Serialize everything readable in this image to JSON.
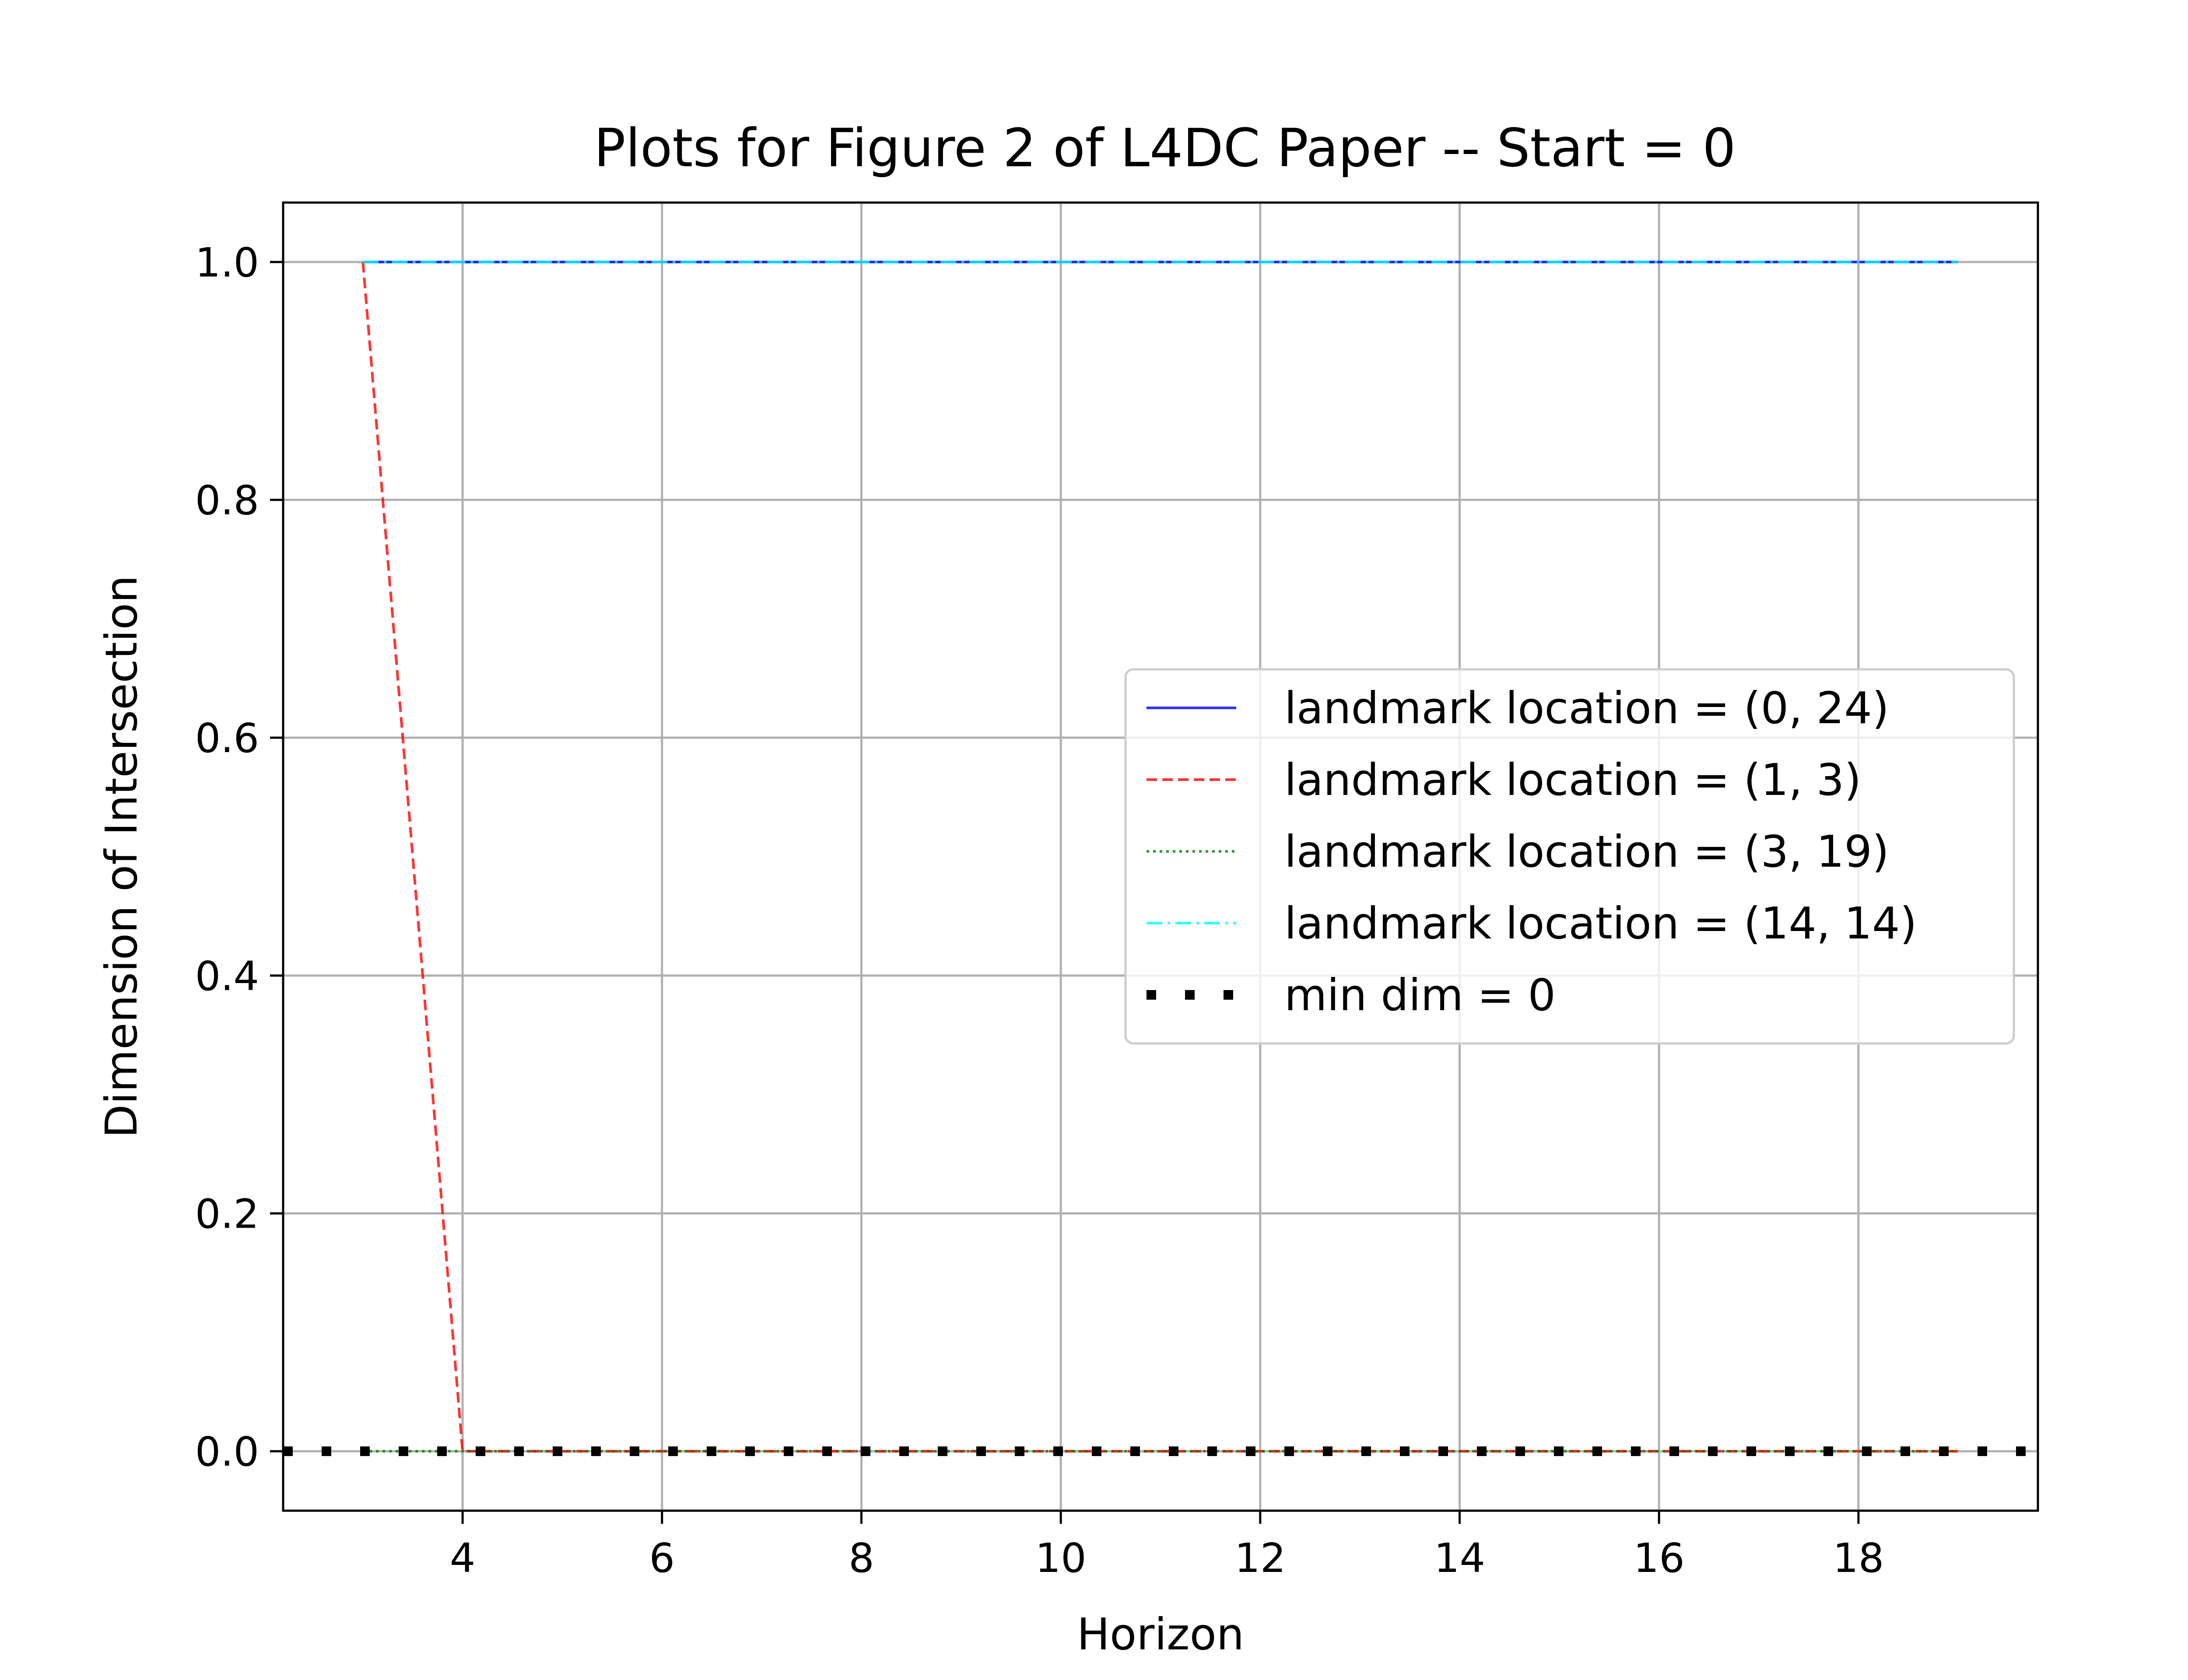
{
  "chart_data": {
    "type": "line",
    "title": "Plots for Figure 2 of L4DC Paper -- Start = 0",
    "xlabel": "Horizon",
    "ylabel": "Dimension of Intersection",
    "xlim": [
      2.2,
      19.8
    ],
    "ylim": [
      -0.05,
      1.05
    ],
    "xticks": [
      4,
      6,
      8,
      10,
      12,
      14,
      16,
      18
    ],
    "yticks": [
      0.0,
      0.2,
      0.4,
      0.6,
      0.8,
      1.0
    ],
    "ytick_labels": [
      "0.0",
      "0.2",
      "0.4",
      "0.6",
      "0.8",
      "1.0"
    ],
    "grid": true,
    "legend_location": "center-right",
    "series": [
      {
        "name": "landmark location = (0, 24)",
        "color": "#0000ff",
        "style": "solid",
        "x": [
          3,
          4,
          5,
          6,
          7,
          8,
          9,
          10,
          11,
          12,
          13,
          14,
          15,
          16,
          17,
          18,
          19
        ],
        "y": [
          1,
          1,
          1,
          1,
          1,
          1,
          1,
          1,
          1,
          1,
          1,
          1,
          1,
          1,
          1,
          1,
          1
        ]
      },
      {
        "name": "landmark location = (1, 3)",
        "color": "#ff0000",
        "style": "dashed",
        "x": [
          3,
          4,
          5,
          6,
          7,
          8,
          9,
          10,
          11,
          12,
          13,
          14,
          15,
          16,
          17,
          18,
          19
        ],
        "y": [
          1,
          0,
          0,
          0,
          0,
          0,
          0,
          0,
          0,
          0,
          0,
          0,
          0,
          0,
          0,
          0,
          0
        ]
      },
      {
        "name": "landmark location = (3, 19)",
        "color": "#008000",
        "style": "dotted",
        "x": [
          3,
          4,
          5,
          6,
          7,
          8,
          9,
          10,
          11,
          12,
          13,
          14,
          15,
          16,
          17,
          18,
          19
        ],
        "y": [
          0,
          0,
          0,
          0,
          0,
          0,
          0,
          0,
          0,
          0,
          0,
          0,
          0,
          0,
          0,
          0,
          0
        ]
      },
      {
        "name": "landmark location = (14, 14)",
        "color": "#00ffff",
        "style": "dashdot",
        "x": [
          3,
          4,
          5,
          6,
          7,
          8,
          9,
          10,
          11,
          12,
          13,
          14,
          15,
          16,
          17,
          18,
          19
        ],
        "y": [
          1,
          1,
          1,
          1,
          1,
          1,
          1,
          1,
          1,
          1,
          1,
          1,
          1,
          1,
          1,
          1,
          1
        ]
      },
      {
        "name": "min dim = 0",
        "color": "#000000",
        "style": "thick-dotted",
        "x": [
          2.2,
          19.8
        ],
        "y": [
          0,
          0
        ]
      }
    ]
  }
}
